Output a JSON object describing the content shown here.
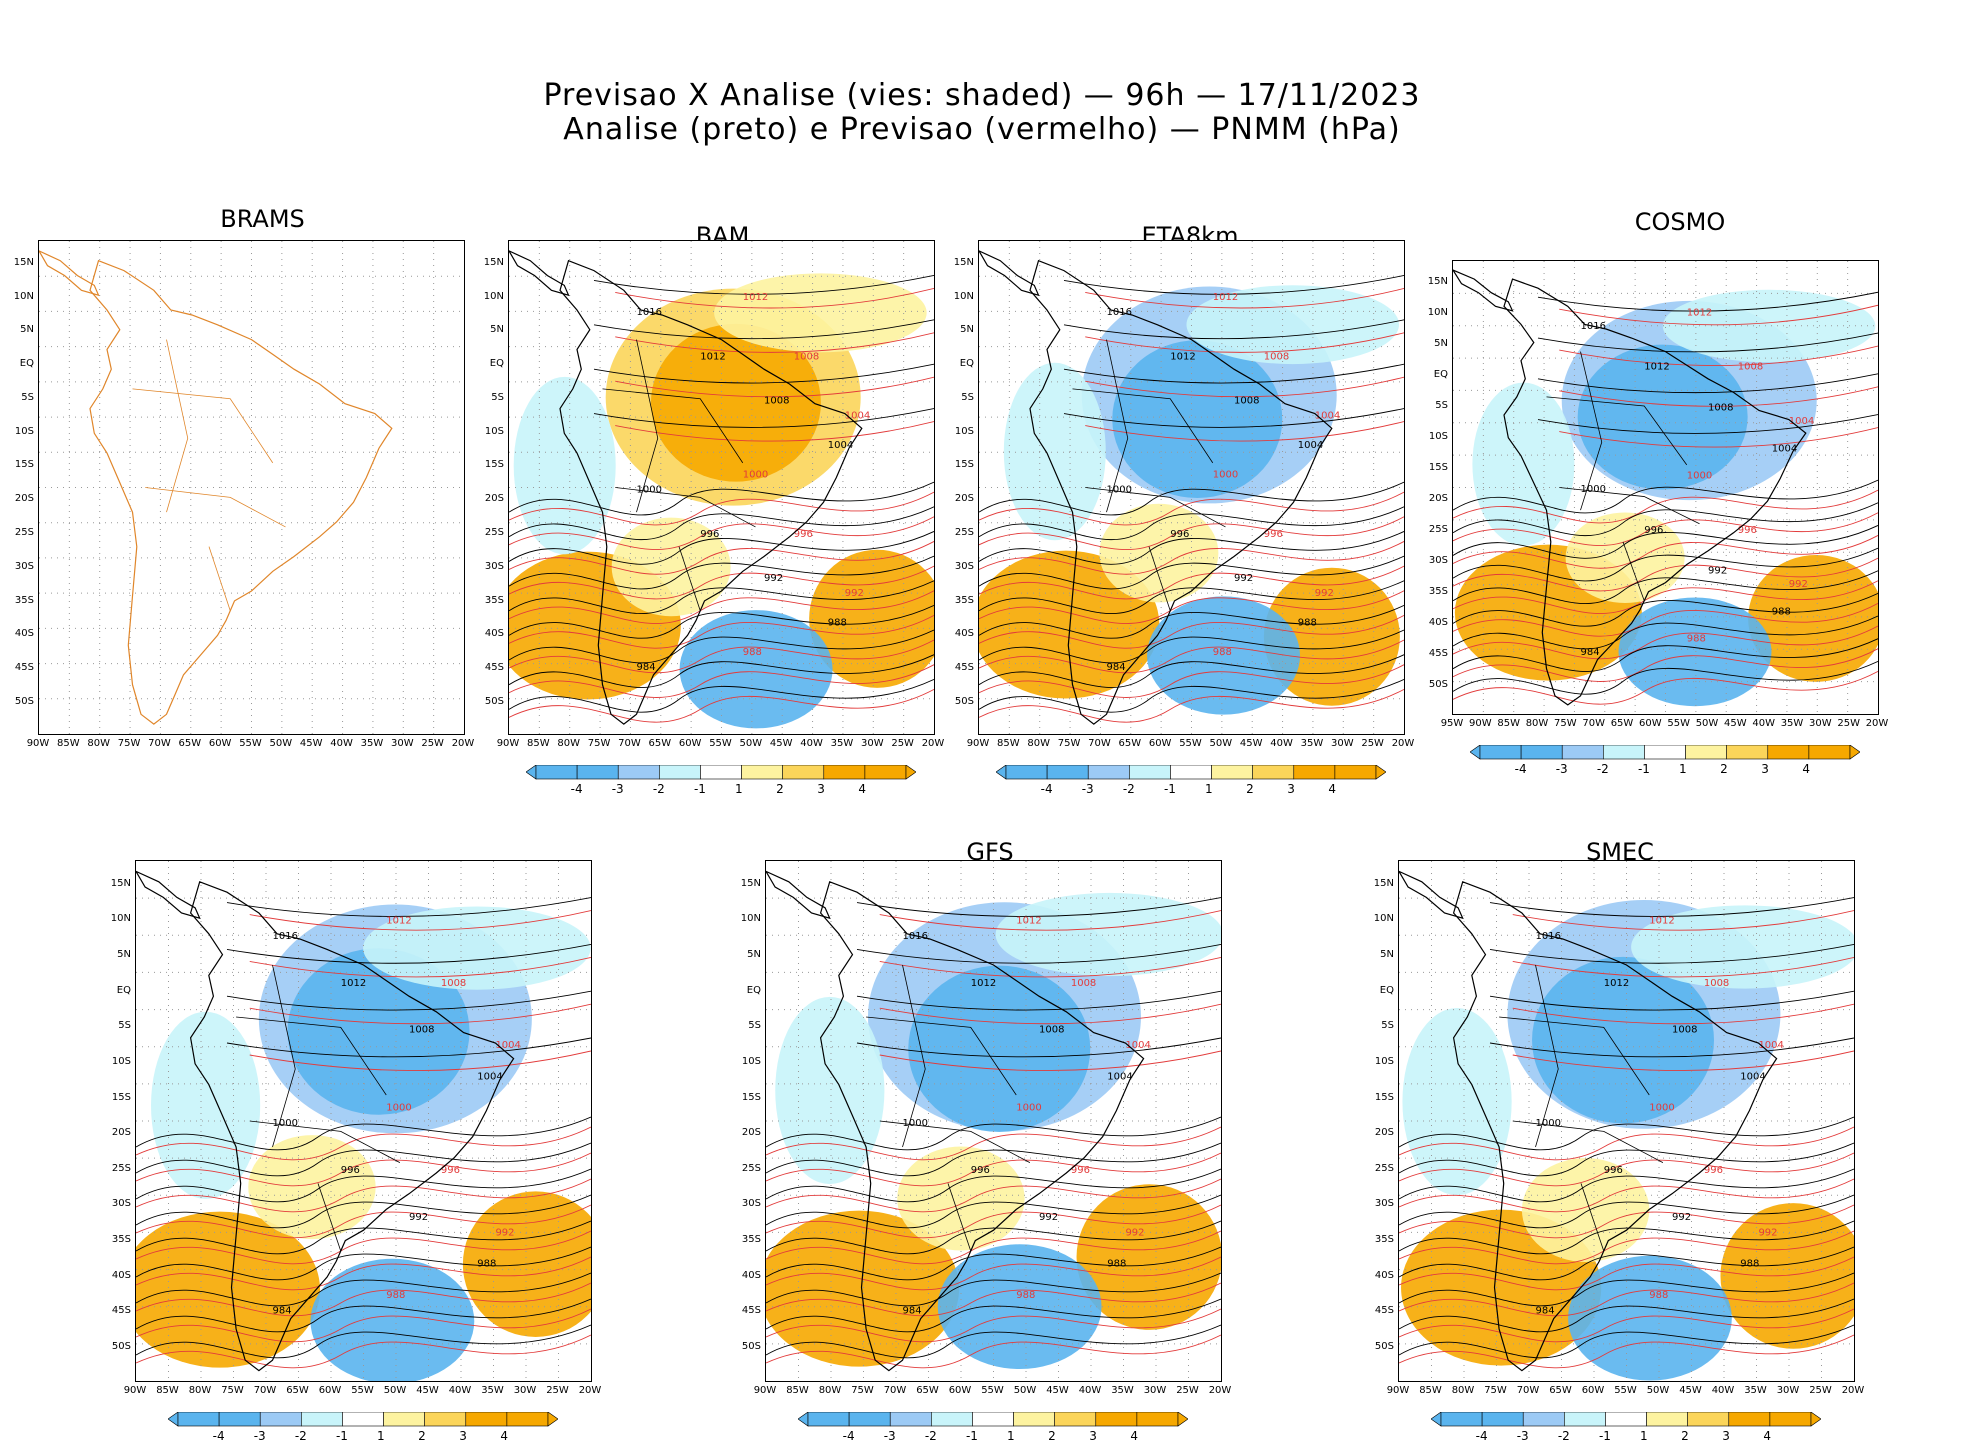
{
  "title": {
    "line1": "Previsao X Analise (vies: shaded) — 96h — 17/11/2023",
    "line2": "Analise (preto) e Previsao (vermelho) — PNMM (hPa)"
  },
  "colors": {
    "neg4": "#5ab4ee",
    "neg3": "#9ccaf5",
    "neg2": "#c8f4fa",
    "neutral": "#ffffff",
    "pos2": "#fdf3a0",
    "pos3": "#fbd55a",
    "pos4": "#f6a800",
    "analysis_line": "#000000",
    "forecast_line": "#e23b3b",
    "coast_brams": "#e0862a"
  },
  "panels": [
    {
      "id": "brams",
      "label": "BRAMS",
      "lat_labels": [
        "15N",
        "10N",
        "5N",
        "EQ",
        "5S",
        "10S",
        "15S",
        "20S",
        "25S",
        "30S",
        "35S",
        "40S",
        "45S",
        "50S"
      ],
      "lon_labels": [
        "90W",
        "85W",
        "80W",
        "75W",
        "70W",
        "65W",
        "60W",
        "55W",
        "50W",
        "45W",
        "40W",
        "35W",
        "30W",
        "25W",
        "20W"
      ],
      "colorbar": false
    },
    {
      "id": "bam",
      "label": "BAM",
      "lat_labels": [
        "15N",
        "10N",
        "5N",
        "EQ",
        "5S",
        "10S",
        "15S",
        "20S",
        "25S",
        "30S",
        "35S",
        "40S",
        "45S",
        "50S"
      ],
      "lon_labels": [
        "90W",
        "85W",
        "80W",
        "75W",
        "70W",
        "65W",
        "60W",
        "55W",
        "50W",
        "45W",
        "40W",
        "35W",
        "30W",
        "25W",
        "20W"
      ],
      "colorbar": true
    },
    {
      "id": "eta8km",
      "label": "ETA8km",
      "lat_labels": [
        "15N",
        "10N",
        "5N",
        "EQ",
        "5S",
        "10S",
        "15S",
        "20S",
        "25S",
        "30S",
        "35S",
        "40S",
        "45S",
        "50S"
      ],
      "lon_labels": [
        "90W",
        "85W",
        "80W",
        "75W",
        "70W",
        "65W",
        "60W",
        "55W",
        "50W",
        "45W",
        "40W",
        "35W",
        "30W",
        "25W",
        "20W"
      ],
      "colorbar": true
    },
    {
      "id": "cosmo",
      "label": "COSMO",
      "lat_labels": [
        "15N",
        "10N",
        "5N",
        "EQ",
        "5S",
        "10S",
        "15S",
        "20S",
        "25S",
        "30S",
        "35S",
        "40S",
        "45S",
        "50S"
      ],
      "lon_labels": [
        "95W",
        "90W",
        "85W",
        "80W",
        "75W",
        "70W",
        "65W",
        "60W",
        "55W",
        "50W",
        "45W",
        "40W",
        "35W",
        "30W",
        "25W",
        "20W"
      ],
      "colorbar": true
    },
    {
      "id": "wrf",
      "label": "",
      "lat_labels": [
        "15N",
        "10N",
        "5N",
        "EQ",
        "5S",
        "10S",
        "15S",
        "20S",
        "25S",
        "30S",
        "35S",
        "40S",
        "45S",
        "50S"
      ],
      "lon_labels": [
        "90W",
        "85W",
        "80W",
        "75W",
        "70W",
        "65W",
        "60W",
        "55W",
        "50W",
        "45W",
        "40W",
        "35W",
        "30W",
        "25W",
        "20W"
      ],
      "colorbar": true
    },
    {
      "id": "gfs",
      "label": "GFS",
      "lat_labels": [
        "15N",
        "10N",
        "5N",
        "EQ",
        "5S",
        "10S",
        "15S",
        "20S",
        "25S",
        "30S",
        "35S",
        "40S",
        "45S",
        "50S"
      ],
      "lon_labels": [
        "90W",
        "85W",
        "80W",
        "75W",
        "70W",
        "65W",
        "60W",
        "55W",
        "50W",
        "45W",
        "40W",
        "35W",
        "30W",
        "25W",
        "20W"
      ],
      "colorbar": true
    },
    {
      "id": "smec",
      "label": "SMEC",
      "lat_labels": [
        "15N",
        "10N",
        "5N",
        "EQ",
        "5S",
        "10S",
        "15S",
        "20S",
        "25S",
        "30S",
        "35S",
        "40S",
        "45S",
        "50S"
      ],
      "lon_labels": [
        "90W",
        "85W",
        "80W",
        "75W",
        "70W",
        "65W",
        "60W",
        "55W",
        "50W",
        "45W",
        "40W",
        "35W",
        "30W",
        "25W",
        "20W"
      ],
      "colorbar": true
    }
  ],
  "colorbar_labels": [
    "-4",
    "-3",
    "-2",
    "-1",
    "1",
    "2",
    "3",
    "4"
  ],
  "isobar_labels": {
    "analysis": [
      "1016",
      "1012",
      "1008",
      "1004",
      "1000",
      "996",
      "992",
      "988",
      "984"
    ],
    "forecast": [
      "1012",
      "1008",
      "1004",
      "1000",
      "996",
      "992",
      "988"
    ]
  }
}
